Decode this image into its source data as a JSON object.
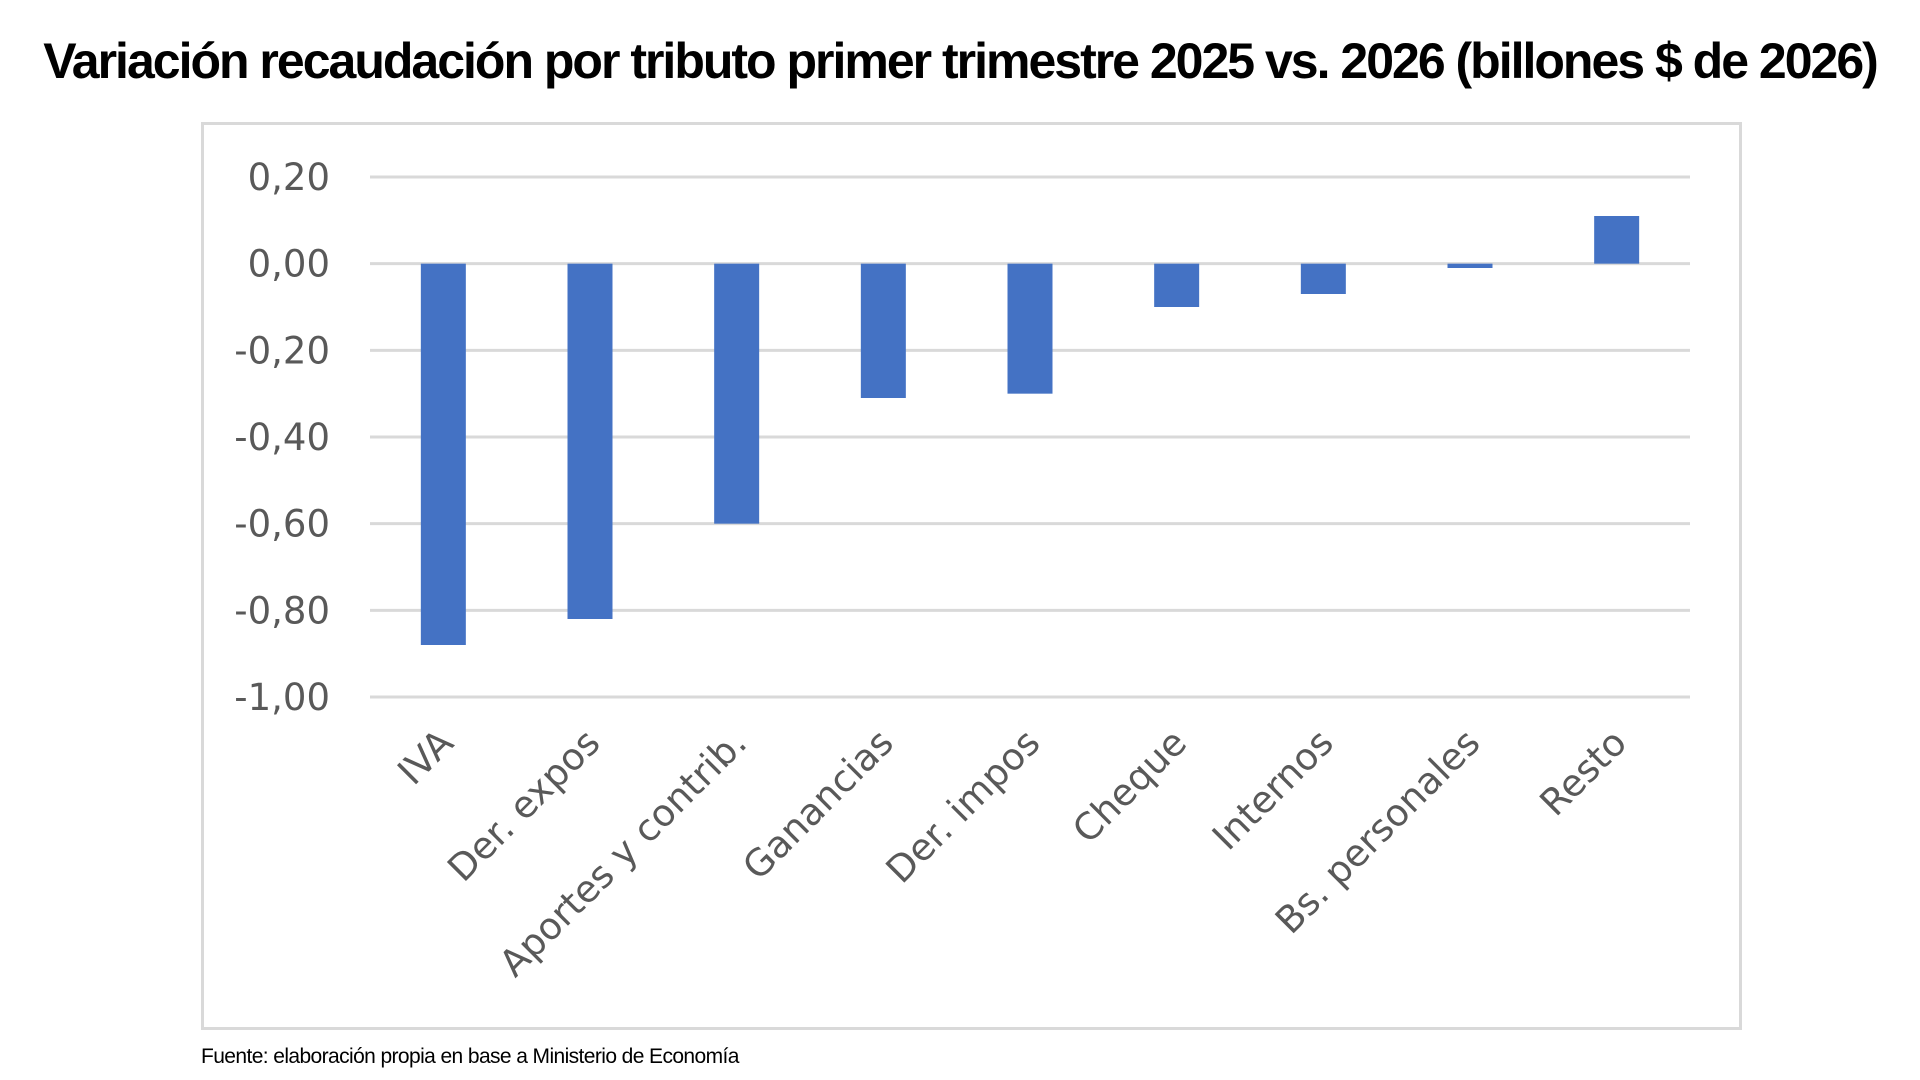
{
  "title": "Variación recaudación por tributo primer trimestre 2025 vs. 2026 (billones $ de 2026)",
  "source": "Fuente: elaboración propia en base a Ministerio de Economía",
  "colors": {
    "bar": "#4472c4",
    "gridline": "#d9d9d9",
    "tick_text": "#595959",
    "frame_border": "#d9d9d9"
  },
  "chart_data": {
    "type": "bar",
    "title": "Variación recaudación por tributo primer trimestre 2025 vs. 2026 (billones $ de 2026)",
    "xlabel": "",
    "ylabel": "",
    "categories": [
      "IVA",
      "Der. expos",
      "Aportes y contrib.",
      "Ganancias",
      "Der. impos",
      "Cheque",
      "Internos",
      "Bs. personales",
      "Resto"
    ],
    "values": [
      -0.88,
      -0.82,
      -0.6,
      -0.31,
      -0.3,
      -0.1,
      -0.07,
      -0.01,
      0.11
    ],
    "ylim": [
      -1.0,
      0.2
    ],
    "yticks": [
      0.2,
      0.0,
      -0.2,
      -0.4,
      -0.6,
      -0.8,
      -1.0
    ],
    "ytick_labels": [
      "0,20",
      "0,00",
      "-0,20",
      "-0,40",
      "-0,60",
      "-0,80",
      "-1,00"
    ],
    "grid": true,
    "legend": "none"
  }
}
